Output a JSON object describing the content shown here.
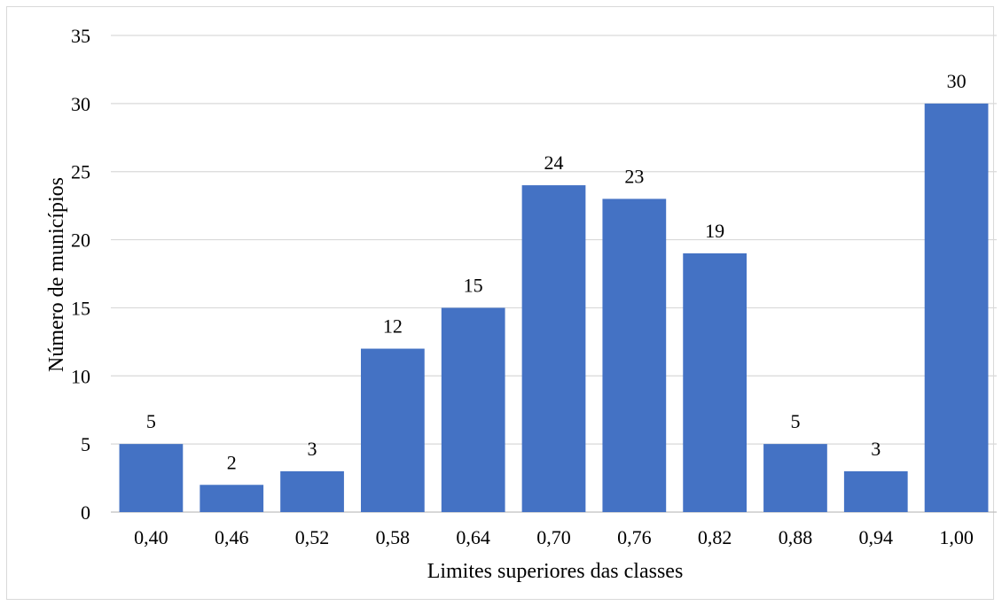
{
  "chart_data": {
    "type": "bar",
    "categories": [
      "0,40",
      "0,46",
      "0,52",
      "0,58",
      "0,64",
      "0,70",
      "0,76",
      "0,82",
      "0,88",
      "0,94",
      "1,00"
    ],
    "values": [
      5,
      2,
      3,
      12,
      15,
      24,
      23,
      19,
      5,
      3,
      30
    ],
    "data_labels": [
      "5",
      "2",
      "3",
      "12",
      "15",
      "24",
      "23",
      "19",
      "5",
      "3",
      "30"
    ],
    "title": "",
    "xlabel": "Limites superiores das classes",
    "ylabel": "Número de municípios",
    "ylim": [
      0,
      35
    ],
    "yticks": [
      0,
      5,
      10,
      15,
      20,
      25,
      30,
      35
    ],
    "grid": true,
    "legend": "none",
    "colors": {
      "bar": "#4472C4",
      "grid": "#d9d9d9",
      "axis": "#bfbfbf"
    }
  }
}
